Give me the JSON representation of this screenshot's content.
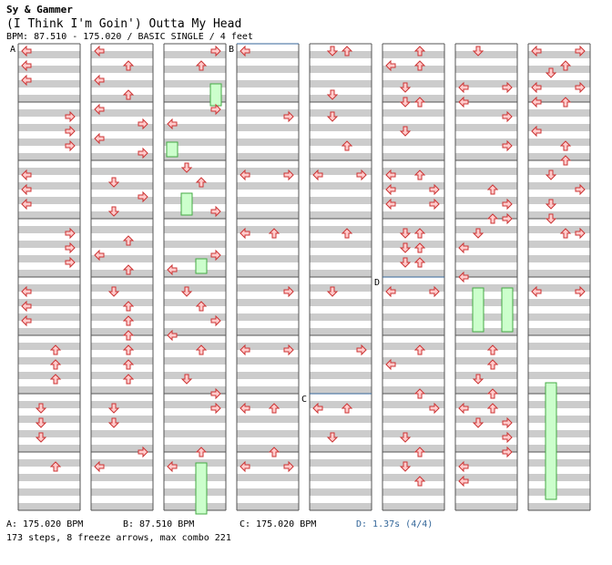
{
  "header": {
    "artist": "Sy & Gammer",
    "title": "(I Think I'm Goin') Outta My Head",
    "bpm_line": "BPM: 87.510 - 175.020 / BASIC SINGLE / 4 feet"
  },
  "chart_markers": {
    "A": "A",
    "B": "B",
    "C": "C",
    "D": "D"
  },
  "legend": {
    "a": "A: 175.020 BPM",
    "b": "B: 87.510 BPM",
    "c": "C: 175.020 BPM",
    "d": "D: 1.37s (4/4)"
  },
  "stats": "173 steps, 8 freeze arrows, max combo 221",
  "colors": {
    "stripe": "#cccccc",
    "border": "#555555",
    "arrow_fill": "#ffcccc",
    "arrow_stroke": "#cc3333",
    "freeze_fill": "#ccffcc",
    "freeze_stroke": "#44aa44",
    "marker_line": "#336699",
    "legend_d": "#336699"
  }
}
